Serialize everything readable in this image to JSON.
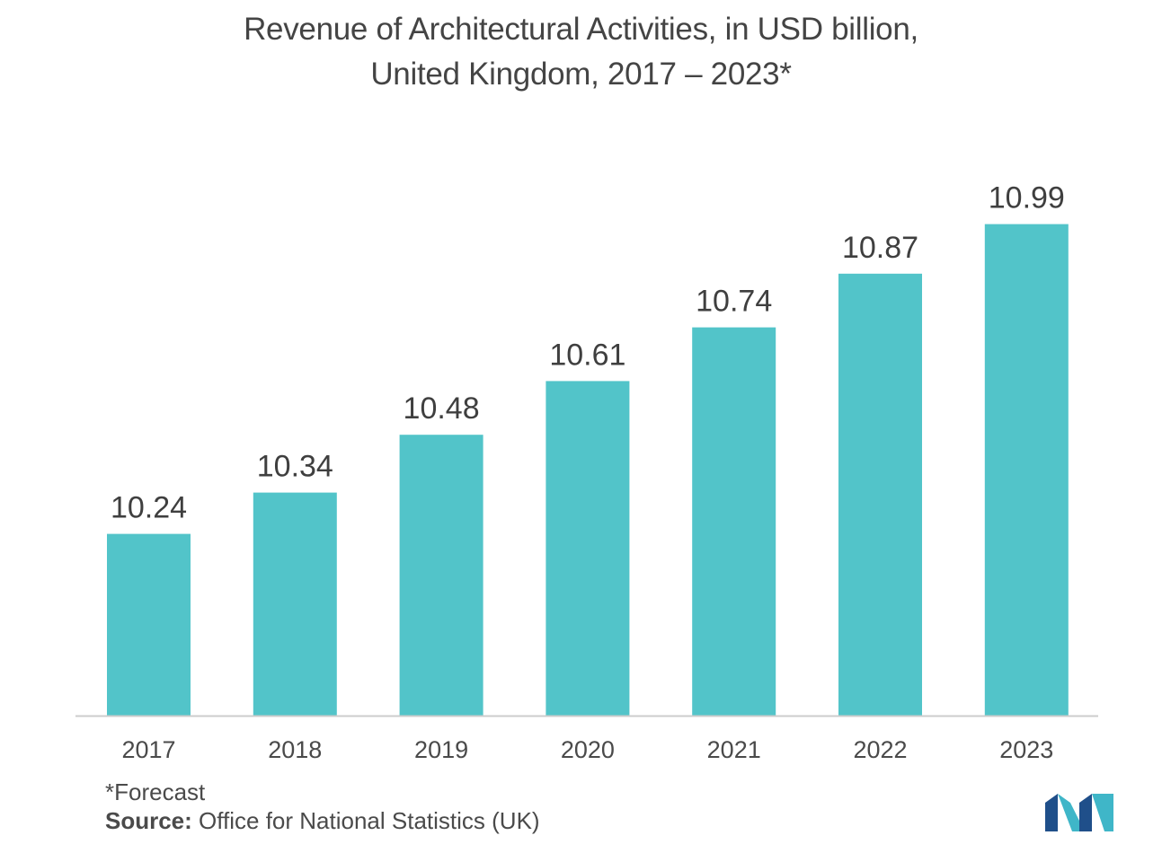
{
  "title": {
    "line1": "Revenue of Architectural Activities, in USD billion,",
    "line2": "United Kingdom, 2017 – 2023*"
  },
  "chart_data": {
    "type": "bar",
    "title": "Revenue of Architectural Activities, in USD billion, United Kingdom, 2017 – 2023*",
    "categories": [
      "2017",
      "2018",
      "2019",
      "2020",
      "2021",
      "2022",
      "2023"
    ],
    "values": [
      10.24,
      10.34,
      10.48,
      10.61,
      10.74,
      10.87,
      10.99
    ],
    "value_labels": [
      "10.24",
      "10.34",
      "10.48",
      "10.61",
      "10.74",
      "10.87",
      "10.99"
    ],
    "xlabel": "",
    "ylabel": "",
    "grid": false,
    "bar_color": "#52c4c9",
    "axis_color": "#cccccc"
  },
  "footer": {
    "note": "*Forecast",
    "source_label": "Source:",
    "source_text": " Office for National Statistics (UK)"
  },
  "logo": {
    "icon": "mordor-intelligence-logo-icon",
    "color_dark": "#1f4f8a",
    "color_light": "#3fb6c8"
  }
}
